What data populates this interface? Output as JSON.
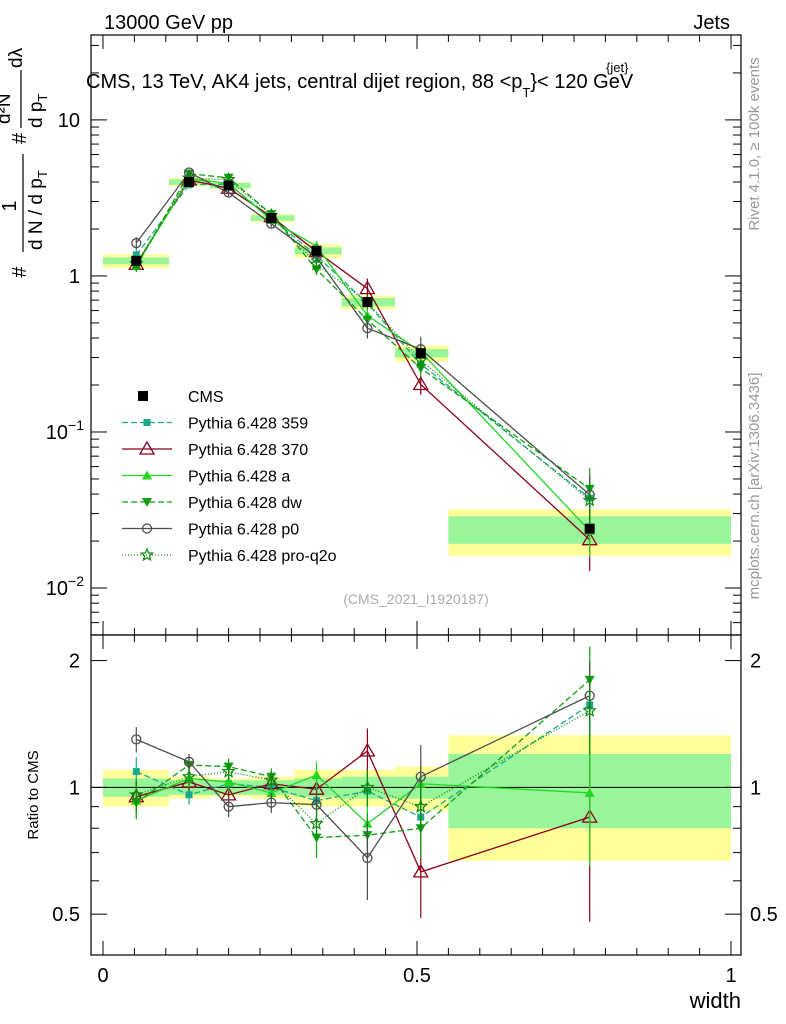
{
  "header": {
    "energy_label": "13000 GeV pp",
    "process_label": "Jets",
    "side_rivet": "Rivet 4.1.0, ≥ 100k events",
    "side_mcplots": "mcplots.cern.ch [arXiv:1306.3436]",
    "watermark": "(CMS_2021_I1920187)"
  },
  "chart_data": {
    "type": "line",
    "title": "CMS, 13 TeV, AK4 jets, central dijet region, 88 < p_T^{jet} < 120 GeV",
    "title_parts": {
      "main": "CMS, 13 TeV, AK4 jets, central dijet region, 88 <",
      "p": "p",
      "sub": "T",
      "sup": "{jet}",
      "end": "}< 120 GeV"
    },
    "xlabel": "width",
    "ylabel": {
      "hash1": "#",
      "one": "1",
      "dN": "d N / d p",
      "dN_sub": "T",
      "hash2": "#",
      "d2N": "d²N",
      "dpT": "d p",
      "dpT_sub": "T",
      "dl": "dλ"
    },
    "ratio_ylabel": "Ratio to CMS",
    "xlim": [
      0,
      1
    ],
    "ylim_main": [
      0.005,
      35
    ],
    "ylim_ratio": [
      0.4,
      2.3
    ],
    "x_ticks": [
      {
        "value": 0,
        "label": "0"
      },
      {
        "value": 0.5,
        "label": "0.5"
      },
      {
        "value": 1,
        "label": "1"
      }
    ],
    "main_ticks": [
      {
        "value": 10,
        "label": "10",
        "sup": ""
      },
      {
        "value": 1,
        "label": "1",
        "sup": ""
      },
      {
        "value": 0.1,
        "label": "10",
        "sup": "−1"
      },
      {
        "value": 0.01,
        "label": "10",
        "sup": "−2"
      }
    ],
    "ratio_ticks": [
      {
        "value": 2,
        "label": "2"
      },
      {
        "value": 1,
        "label": "1"
      },
      {
        "value": 0.5,
        "label": "0.5"
      }
    ],
    "bin_edges": [
      0,
      0.105,
      0.17,
      0.235,
      0.305,
      0.38,
      0.465,
      0.55,
      1.0
    ],
    "x": [
      0.053,
      0.137,
      0.2,
      0.268,
      0.34,
      0.421,
      0.506,
      0.775
    ],
    "data": {
      "name": "CMS",
      "values": [
        1.25,
        4.0,
        3.8,
        2.35,
        1.45,
        0.68,
        0.32,
        0.024
      ],
      "stat_band": [
        0.05,
        0.04,
        0.04,
        0.04,
        0.05,
        0.06,
        0.06,
        0.2
      ],
      "total_band": [
        0.1,
        0.06,
        0.05,
        0.06,
        0.1,
        0.1,
        0.12,
        0.33
      ]
    },
    "series": [
      {
        "name": "Pythia 6.428 359",
        "color": "#1aaa8a",
        "marker": "square",
        "dash": "6,3",
        "ratio": [
          1.09,
          0.96,
          1.02,
          1.0,
          0.93,
          0.98,
          0.85,
          1.57
        ],
        "ratio_err": [
          0.09,
          0.05,
          0.05,
          0.05,
          0.08,
          0.1,
          0.1,
          0.3
        ]
      },
      {
        "name": "Pythia 6.428 370",
        "color": "#8b0019",
        "marker": "triangle-open",
        "dash": "",
        "ratio": [
          0.95,
          1.03,
          0.96,
          1.02,
          0.99,
          1.22,
          0.63,
          0.85
        ],
        "ratio_err": [
          0.08,
          0.05,
          0.05,
          0.05,
          0.08,
          0.16,
          0.14,
          0.37
        ]
      },
      {
        "name": "Pythia 6.428 a",
        "color": "#22d622",
        "marker": "triangle",
        "dash": "",
        "ratio": [
          0.93,
          1.05,
          1.03,
          0.97,
          1.07,
          0.82,
          1.02,
          0.97
        ],
        "ratio_err": [
          0.08,
          0.05,
          0.05,
          0.05,
          0.08,
          0.1,
          0.12,
          0.32
        ]
      },
      {
        "name": "Pythia 6.428 dw",
        "color": "#11a011",
        "marker": "triangle-down",
        "dash": "6,3",
        "ratio": [
          0.92,
          1.13,
          1.12,
          1.06,
          0.76,
          0.77,
          0.8,
          1.8
        ],
        "ratio_err": [
          0.08,
          0.05,
          0.05,
          0.05,
          0.08,
          0.1,
          0.12,
          0.36
        ]
      },
      {
        "name": "Pythia 6.428 p0",
        "color": "#4d4d4d",
        "marker": "circle-open",
        "dash": "",
        "ratio": [
          1.3,
          1.15,
          0.9,
          0.92,
          0.91,
          0.68,
          1.06,
          1.65
        ],
        "ratio_err": [
          0.09,
          0.05,
          0.05,
          0.05,
          0.08,
          0.14,
          0.2,
          0.34
        ]
      },
      {
        "name": "Pythia 6.428 pro-q2o",
        "color": "#0a8a0a",
        "marker": "star",
        "dash": "1,2",
        "ratio": [
          0.96,
          1.06,
          1.09,
          1.04,
          0.82,
          1.0,
          0.9,
          1.52
        ],
        "ratio_err": [
          0.08,
          0.05,
          0.05,
          0.05,
          0.08,
          0.1,
          0.12,
          0.32
        ]
      }
    ],
    "legend_position": "center-left"
  }
}
